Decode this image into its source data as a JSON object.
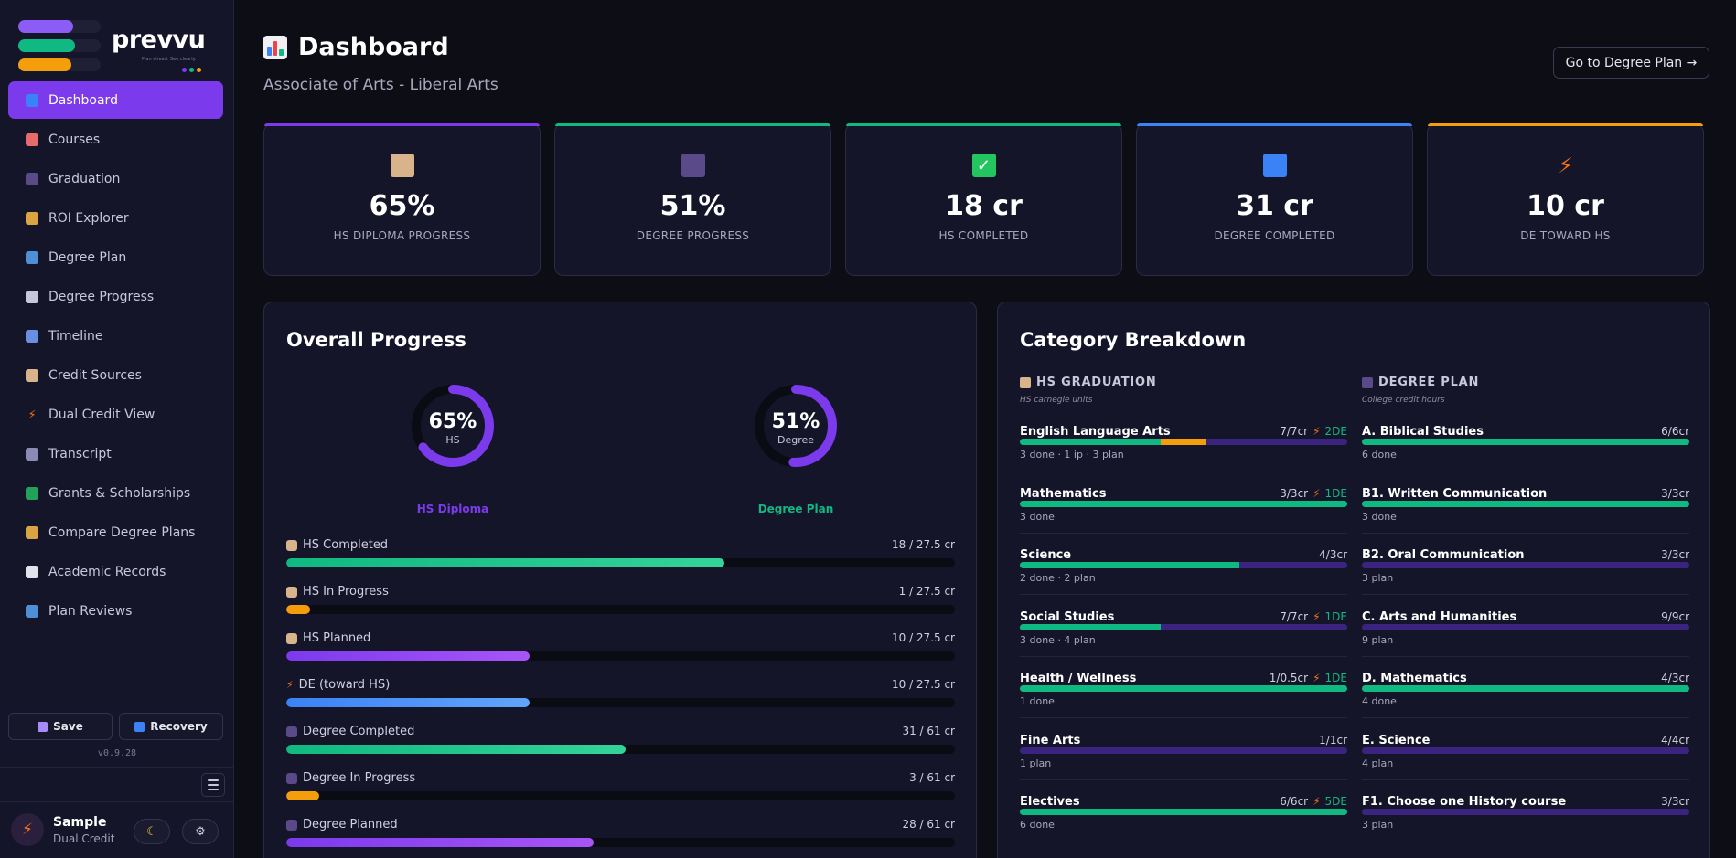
{
  "brand": {
    "name": "prevvu",
    "tagline": "Plan ahead. See clearly."
  },
  "nav": [
    {
      "label": "Dashboard",
      "icon": "chart-icon",
      "active": true
    },
    {
      "label": "Courses",
      "icon": "books-icon"
    },
    {
      "label": "Graduation",
      "icon": "grad-cap-icon"
    },
    {
      "label": "ROI Explorer",
      "icon": "money-bag-icon"
    },
    {
      "label": "Degree Plan",
      "icon": "open-book-icon"
    },
    {
      "label": "Degree Progress",
      "icon": "trend-chart-icon"
    },
    {
      "label": "Timeline",
      "icon": "calendar-icon"
    },
    {
      "label": "Credit Sources",
      "icon": "school-icon"
    },
    {
      "label": "Dual Credit View",
      "icon": "bolt-icon"
    },
    {
      "label": "Transcript",
      "icon": "printer-icon"
    },
    {
      "label": "Grants & Scholarships",
      "icon": "cash-icon"
    },
    {
      "label": "Compare Degree Plans",
      "icon": "scales-icon"
    },
    {
      "label": "Academic Records",
      "icon": "document-icon"
    },
    {
      "label": "Plan Reviews",
      "icon": "magnifier-icon"
    }
  ],
  "sidebar_actions": {
    "save": "Save",
    "recovery": "Recovery"
  },
  "version": "v0.9.28",
  "user": {
    "name": "Sample",
    "subtitle": "Dual Credit"
  },
  "header": {
    "title": "Dashboard",
    "subtitle": "Associate of Arts - Liberal Arts",
    "degree_plan_button": "Go to Degree Plan →"
  },
  "stats": [
    {
      "value": "65%",
      "label": "HS DIPLOMA PROGRESS",
      "icon": "school-icon",
      "color": "#7c3aed"
    },
    {
      "value": "51%",
      "label": "DEGREE PROGRESS",
      "icon": "grad-cap-icon",
      "color": "#10b981"
    },
    {
      "value": "18 cr",
      "label": "HS COMPLETED",
      "icon": "checkmark-icon",
      "color": "#10b981"
    },
    {
      "value": "31 cr",
      "label": "DEGREE COMPLETED",
      "icon": "chart-icon",
      "color": "#3b82f6"
    },
    {
      "value": "10 cr",
      "label": "DE TOWARD HS",
      "icon": "bolt-icon",
      "color": "#f59e0b"
    }
  ],
  "overall": {
    "title": "Overall Progress",
    "rings": [
      {
        "value": "65%",
        "label": "HS",
        "caption": "HS Diploma",
        "percent": 65,
        "color": "#7c3aed"
      },
      {
        "value": "51%",
        "label": "Degree",
        "caption": "Degree Plan",
        "percent": 51,
        "color": "#7c3aed",
        "caption_color": "#10b981"
      }
    ],
    "bars": [
      {
        "label": "HS Completed",
        "value": "18 / 27.5 cr",
        "fraction": 0.655,
        "color": "#10b981",
        "icon": "school-icon"
      },
      {
        "label": "HS In Progress",
        "value": "1 / 27.5 cr",
        "fraction": 0.036,
        "color": "#f59e0b",
        "icon": "school-icon"
      },
      {
        "label": "HS Planned",
        "value": "10 / 27.5 cr",
        "fraction": 0.364,
        "color": "#7c3aed",
        "icon": "school-icon"
      },
      {
        "label": "DE (toward HS)",
        "value": "10 / 27.5 cr",
        "fraction": 0.364,
        "color": "#3b82f6",
        "icon": "bolt-icon"
      },
      {
        "label": "Degree Completed",
        "value": "31 / 61 cr",
        "fraction": 0.508,
        "color": "#10b981",
        "icon": "grad-cap-icon"
      },
      {
        "label": "Degree In Progress",
        "value": "3 / 61 cr",
        "fraction": 0.049,
        "color": "#f59e0b",
        "icon": "grad-cap-icon"
      },
      {
        "label": "Degree Planned",
        "value": "28 / 61 cr",
        "fraction": 0.459,
        "color": "#7c3aed",
        "icon": "grad-cap-icon"
      }
    ]
  },
  "category": {
    "title": "Category Breakdown",
    "hs": {
      "heading": "HS GRADUATION",
      "subheading": "HS carnegie units",
      "rows": [
        {
          "name": "English Language Arts",
          "value": "7/7cr",
          "de": "2DE",
          "desc": "3 done · 1 ip · 3 plan",
          "done": 0.43,
          "ip": 0.14
        },
        {
          "name": "Mathematics",
          "value": "3/3cr",
          "de": "1DE",
          "desc": "3 done",
          "done": 1,
          "ip": 0
        },
        {
          "name": "Science",
          "value": "4/3cr",
          "de": "",
          "desc": "2 done · 2 plan",
          "done": 0.67,
          "ip": 0
        },
        {
          "name": "Social Studies",
          "value": "7/7cr",
          "de": "1DE",
          "desc": "3 done · 4 plan",
          "done": 0.43,
          "ip": 0
        },
        {
          "name": "Health / Wellness",
          "value": "1/0.5cr",
          "de": "1DE",
          "desc": "1 done",
          "done": 1,
          "ip": 0
        },
        {
          "name": "Fine Arts",
          "value": "1/1cr",
          "de": "",
          "desc": "1 plan",
          "done": 0,
          "ip": 0
        },
        {
          "name": "Electives",
          "value": "6/6cr",
          "de": "5DE",
          "desc": "6 done",
          "done": 1,
          "ip": 0
        }
      ]
    },
    "degree": {
      "heading": "DEGREE PLAN",
      "subheading": "College credit hours",
      "rows": [
        {
          "name": "A. Biblical Studies",
          "value": "6/6cr",
          "desc": "6 done",
          "done": 1
        },
        {
          "name": "B1. Written Communication",
          "value": "3/3cr",
          "desc": "3 done",
          "done": 1
        },
        {
          "name": "B2. Oral Communication",
          "value": "3/3cr",
          "desc": "3 plan",
          "done": 0
        },
        {
          "name": "C. Arts and Humanities",
          "value": "9/9cr",
          "desc": "9 plan",
          "done": 0
        },
        {
          "name": "D. Mathematics",
          "value": "4/3cr",
          "desc": "4 done",
          "done": 1
        },
        {
          "name": "E. Science",
          "value": "4/4cr",
          "desc": "4 plan",
          "done": 0
        },
        {
          "name": "F1. Choose one History course",
          "value": "3/3cr",
          "desc": "3 plan",
          "done": 0
        }
      ]
    }
  }
}
